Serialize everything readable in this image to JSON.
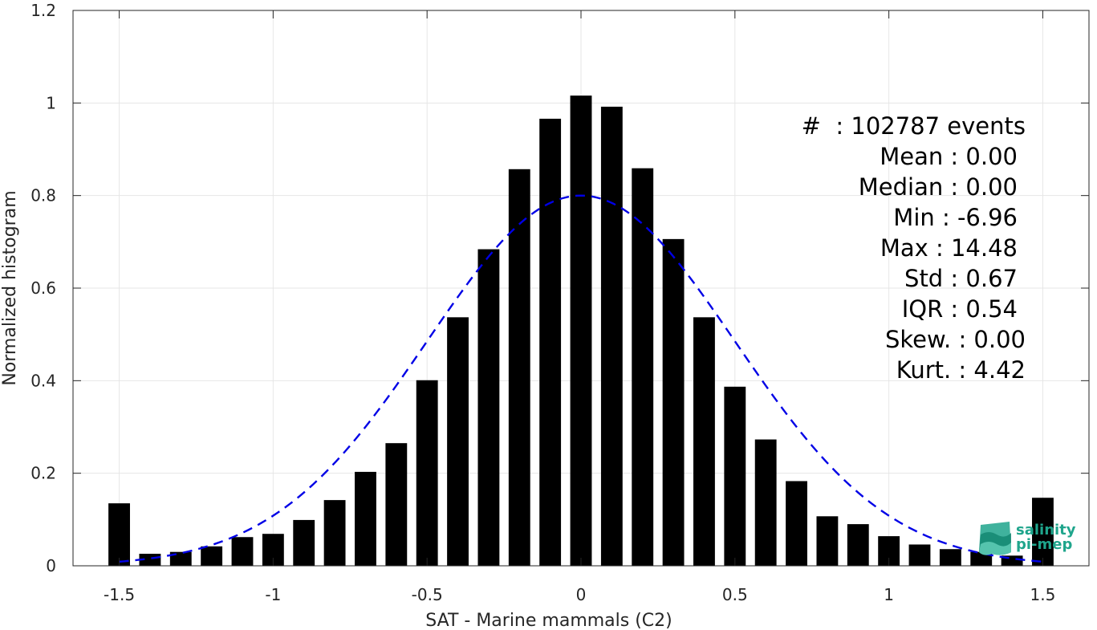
{
  "chart_data": {
    "type": "bar",
    "xlabel": "SAT - Marine mammals (C2)",
    "ylabel": "Normalized histogram",
    "xlim": [
      -1.65,
      1.65
    ],
    "ylim": [
      0,
      1.2
    ],
    "xticks": [
      "-1.5",
      "-1",
      "-0.5",
      "0",
      "0.5",
      "1",
      "1.5"
    ],
    "xtick_values": [
      -1.5,
      -1,
      -0.5,
      0,
      0.5,
      1,
      1.5
    ],
    "yticks": [
      "0",
      "0.2",
      "0.4",
      "0.6",
      "0.8",
      "1",
      "1.2"
    ],
    "ytick_values": [
      0,
      0.2,
      0.4,
      0.6,
      0.8,
      1.0,
      1.2
    ],
    "grid": true,
    "bar_width": 0.07,
    "bar_color": "#000000",
    "x": [
      -1.5,
      -1.4,
      -1.3,
      -1.2,
      -1.1,
      -1.0,
      -0.9,
      -0.8,
      -0.7,
      -0.6,
      -0.5,
      -0.4,
      -0.3,
      -0.2,
      -0.1,
      0.0,
      0.1,
      0.2,
      0.3,
      0.4,
      0.5,
      0.6,
      0.7,
      0.8,
      0.9,
      1.0,
      1.1,
      1.2,
      1.3,
      1.4,
      1.5
    ],
    "values": [
      0.135,
      0.026,
      0.03,
      0.042,
      0.062,
      0.069,
      0.099,
      0.142,
      0.203,
      0.265,
      0.401,
      0.537,
      0.684,
      0.857,
      0.966,
      1.016,
      0.992,
      0.859,
      0.706,
      0.537,
      0.387,
      0.273,
      0.183,
      0.107,
      0.09,
      0.064,
      0.046,
      0.036,
      0.03,
      0.022,
      0.147
    ],
    "fit_curve": {
      "type": "gaussian",
      "mean": 0.0,
      "std": 0.5,
      "peak": 0.8,
      "x_range": [
        -1.5,
        1.5
      ],
      "style": "dashed",
      "color": "#0000e6"
    },
    "annotation": [
      "#  : 102787 events",
      "Mean : 0.00",
      "Median : 0.00",
      "Min : -6.96",
      "Max : 14.48",
      "Std : 0.67",
      "IQR : 0.54",
      "Skew. : 0.00",
      "Kurt. : 4.42"
    ]
  },
  "logo": {
    "line1": "salinity",
    "line2": "pi-mep",
    "color": "#1fa58c"
  }
}
